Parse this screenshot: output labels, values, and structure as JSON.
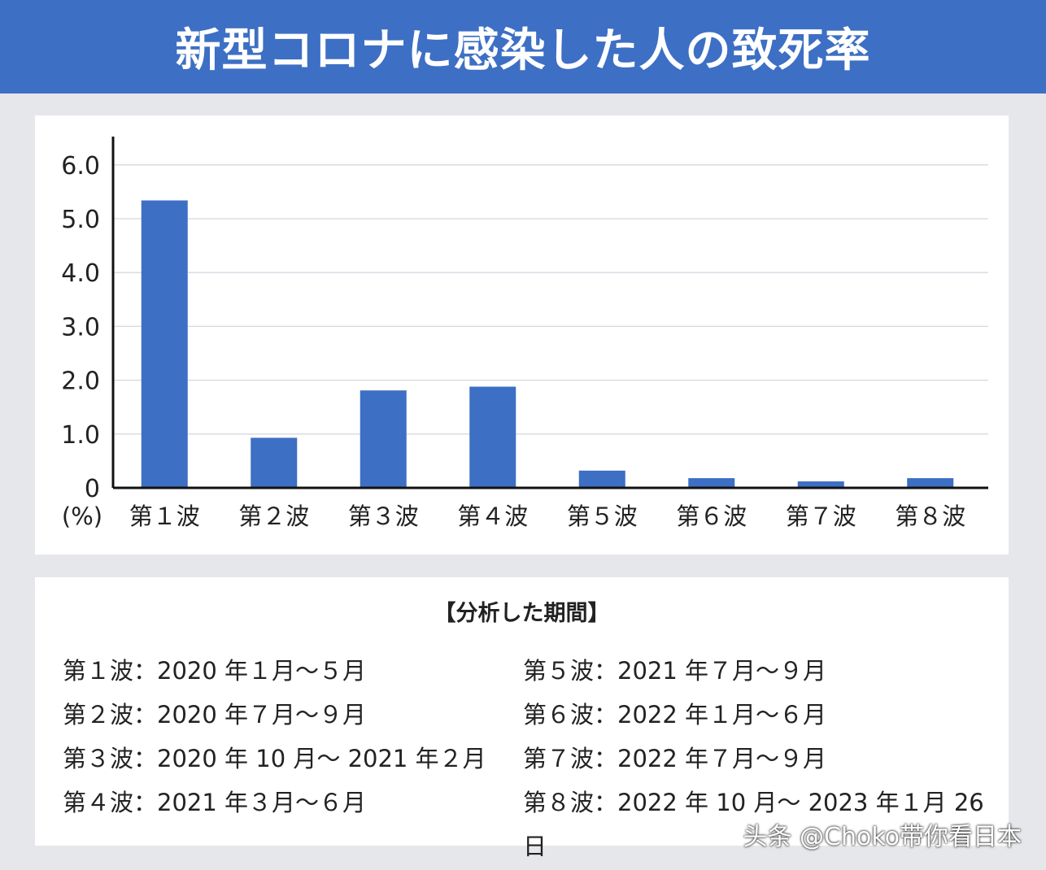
{
  "header": {
    "title": "新型コロナに感染した人の致死率"
  },
  "chart_data": {
    "type": "bar",
    "title": "新型コロナに感染した人の致死率",
    "ylabel": "(%)",
    "xlabel": "",
    "categories": [
      "第１波",
      "第２波",
      "第３波",
      "第４波",
      "第５波",
      "第６波",
      "第７波",
      "第８波"
    ],
    "values": [
      5.34,
      0.93,
      1.81,
      1.88,
      0.32,
      0.18,
      0.12,
      0.18
    ],
    "ylim": [
      0,
      6
    ],
    "yticks": [
      "0",
      "1.0",
      "2.0",
      "3.0",
      "4.0",
      "5.0",
      "6.0"
    ],
    "grid": true,
    "bar_color": "#3d6fc4"
  },
  "periods": {
    "title": "【分析した期間】",
    "left": [
      "第１波：2020 年１月〜５月",
      "第２波：2020 年７月〜９月",
      "第３波：2020 年 10 月〜 2021 年２月",
      "第４波：2021 年３月〜６月"
    ],
    "right": [
      "第５波：2021 年７月〜９月",
      "第６波：2022 年１月〜６月",
      "第７波：2022 年７月〜９月",
      "第８波：2022 年 10 月〜 2023 年１月 26 日"
    ]
  },
  "watermark": "头条 @Choko带你看日本"
}
